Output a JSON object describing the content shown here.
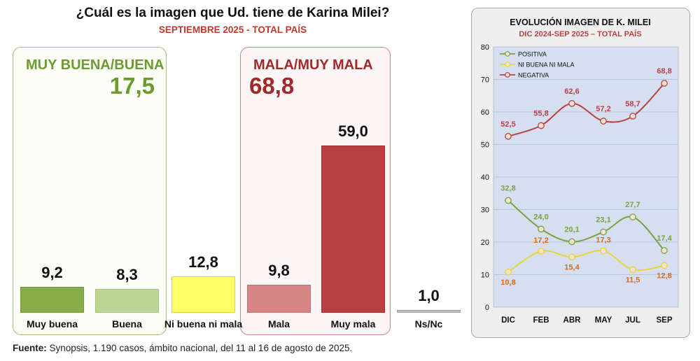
{
  "header": {
    "title": "¿Cuál es la imagen que Ud. tiene de Karina Milei?",
    "subtitle": "SEPTIEMBRE 2025 - TOTAL PAÍS"
  },
  "groups": {
    "positive": {
      "label": "MUY BUENA/BUENA",
      "value": "17,5"
    },
    "negative": {
      "label": "MALA/MUY MALA",
      "value": "68,8"
    }
  },
  "footer": {
    "source_label": "Fuente:",
    "source_text": " Synopsis, 1.190 casos, ámbito nacional, del 11 al 16 de agosto de 2025."
  },
  "colors": {
    "muy_buena": "#86ad48",
    "buena": "#bcd494",
    "neutral": "#ffff66",
    "mala": "#d88585",
    "muy_mala": "#b94040",
    "nsnc": "#bfbfbf",
    "positiva": "#7ba03e",
    "ni_buena": "#e8d43a",
    "negativa": "#b84242",
    "neutral_label": "#d86a18"
  },
  "chart_data": [
    {
      "type": "bar",
      "title": "¿Cuál es la imagen que Ud. tiene de Karina Milei?",
      "categories": [
        "Muy buena",
        "Buena",
        "Ni buena ni mala",
        "Mala",
        "Muy mala",
        "Ns/Nc"
      ],
      "values": [
        9.2,
        8.3,
        12.8,
        9.8,
        59.0,
        1.0
      ],
      "value_labels": [
        "9,2",
        "8,3",
        "12,8",
        "9,8",
        "59,0",
        "1,0"
      ]
    },
    {
      "type": "line",
      "title": "EVOLUCIÓN IMAGEN DE K. MILEI",
      "subtitle": "DIC 2024-SEP 2025 – TOTAL PAÍS",
      "x": [
        "DIC",
        "FEB",
        "ABR",
        "MAY",
        "JUL",
        "SEP"
      ],
      "ylim": [
        0,
        80
      ],
      "yticks": [
        0,
        10,
        20,
        30,
        40,
        50,
        60,
        70,
        80
      ],
      "grid": true,
      "legend": "top-left",
      "series": [
        {
          "name": "POSITIVA",
          "values": [
            32.8,
            24.0,
            20.1,
            23.1,
            27.7,
            17.4
          ],
          "labels": [
            "32,8",
            "24,0",
            "20,1",
            "23,1",
            "27,7",
            "17,4"
          ]
        },
        {
          "name": "NI BUENA NI MALA",
          "values": [
            10.8,
            17.2,
            15.4,
            17.3,
            11.5,
            12.8
          ],
          "labels": [
            "10,8",
            "17,2",
            "15,4",
            "17,3",
            "11,5",
            "12,8"
          ]
        },
        {
          "name": "NEGATIVA",
          "values": [
            52.5,
            55.8,
            62.6,
            57.2,
            58.7,
            68.8
          ],
          "labels": [
            "52,5",
            "55,8",
            "62,6",
            "57,2",
            "58,7",
            "68,8"
          ]
        }
      ]
    }
  ]
}
